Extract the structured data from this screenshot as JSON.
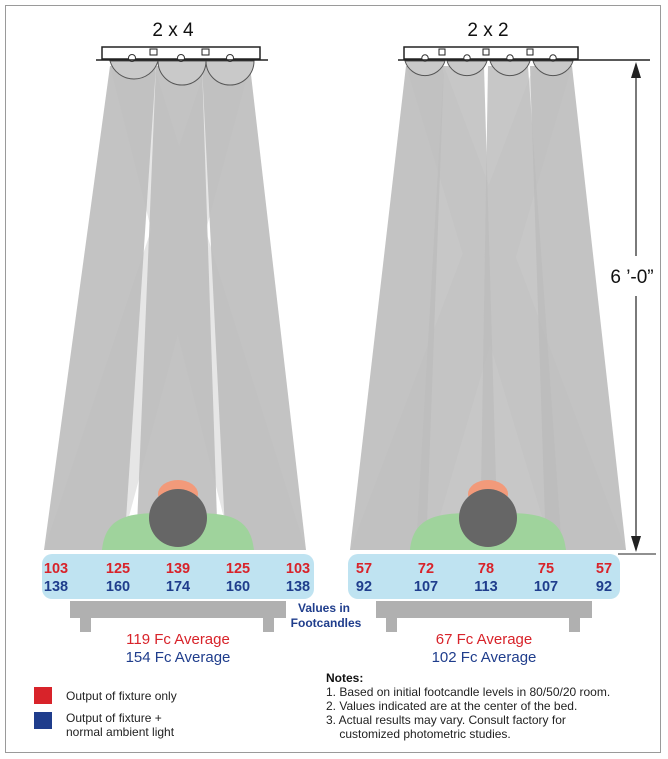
{
  "colors": {
    "fixture_only": "#d8232a",
    "ambient": "#1f3d8c",
    "tray": "#bfe3f1",
    "beam_dark": "#bdbdbd",
    "beam_light": "#e6e6e6",
    "bed": "#b0b0b0",
    "body_green": "#9fd39c",
    "skin": "#f29a7a",
    "hair": "#666666"
  },
  "left": {
    "title": "2 x 4",
    "red_values": [
      "103",
      "125",
      "139",
      "125",
      "103"
    ],
    "blue_values": [
      "138",
      "160",
      "174",
      "160",
      "138"
    ],
    "avg_red": "119 Fc Average",
    "avg_blue": "154 Fc Average"
  },
  "right": {
    "title": "2 x 2",
    "red_values": [
      "57",
      "72",
      "78",
      "75",
      "57"
    ],
    "blue_values": [
      "92",
      "107",
      "113",
      "107",
      "92"
    ],
    "avg_red": "67 Fc Average",
    "avg_blue": "102 Fc Average"
  },
  "center_label": {
    "line1": "Values in",
    "line2": "Footcandles"
  },
  "dimension": {
    "label": "6 ’-0”"
  },
  "legend": {
    "fixture_only": "Output of fixture only",
    "ambient_line1": "Output of fixture +",
    "ambient_line2": "normal ambient light"
  },
  "notes": {
    "heading": "Notes:",
    "items": [
      "1. Based on initial footcandle levels in 80/50/20 room.",
      "2. Values indicated are at the center of the bed.",
      "3. Actual results may vary. Consult factory for",
      "    customized photometric studies."
    ]
  }
}
